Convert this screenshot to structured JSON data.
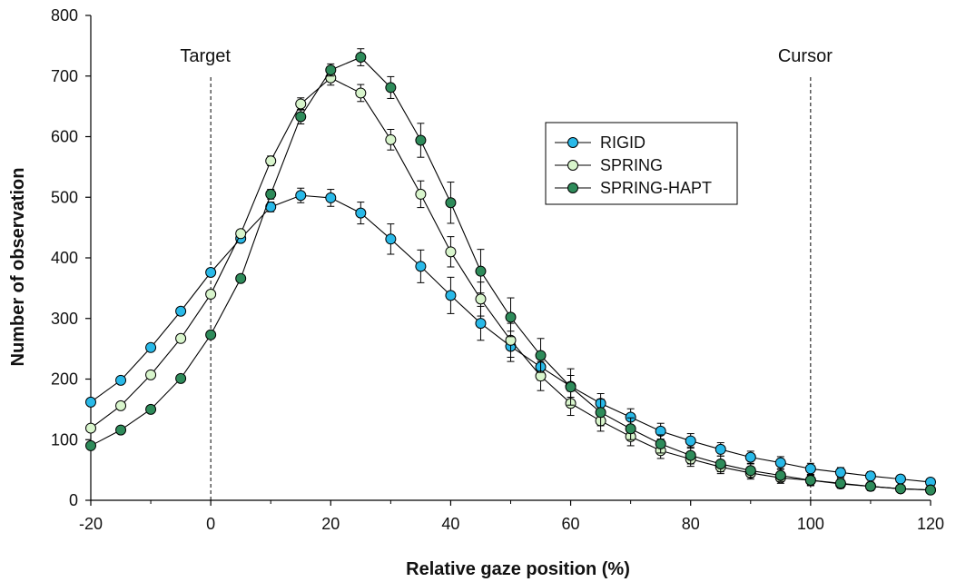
{
  "chart_data": {
    "type": "line",
    "title": "",
    "xlabel": "Relative gaze position (%)",
    "ylabel": "Number of observation",
    "xlim": [
      -20,
      120
    ],
    "ylim": [
      0,
      800
    ],
    "xticks": [
      -20,
      0,
      20,
      40,
      60,
      80,
      100,
      120
    ],
    "yticks": [
      0,
      100,
      200,
      300,
      400,
      500,
      600,
      700,
      800
    ],
    "grid": false,
    "legend_position": "top-right",
    "x": [
      -20,
      -15,
      -10,
      -5,
      0,
      5,
      10,
      15,
      20,
      25,
      30,
      35,
      40,
      45,
      50,
      55,
      60,
      65,
      70,
      75,
      80,
      85,
      90,
      95,
      100,
      105,
      110,
      115,
      120
    ],
    "annotations": [
      {
        "label": "Target",
        "x": 0,
        "style": "dashed"
      },
      {
        "label": "Cursor",
        "x": 100,
        "style": "dashed"
      }
    ],
    "series": [
      {
        "name": "RIGID",
        "color": "#29b9e8",
        "values": [
          162,
          198,
          252,
          312,
          376,
          432,
          484,
          503,
          499,
          474,
          431,
          386,
          338,
          292,
          254,
          220,
          188,
          160,
          137,
          114,
          98,
          84,
          71,
          62,
          52,
          46,
          40,
          35,
          30
        ],
        "errors": [
          0,
          0,
          0,
          0,
          0,
          5,
          8,
          12,
          14,
          18,
          25,
          27,
          30,
          28,
          25,
          22,
          18,
          16,
          14,
          13,
          12,
          11,
          10,
          10,
          9,
          8,
          7,
          6,
          5
        ]
      },
      {
        "name": "SPRING",
        "color": "#d8f5cc",
        "values": [
          119,
          156,
          207,
          267,
          340,
          440,
          560,
          654,
          697,
          672,
          595,
          505,
          410,
          332,
          264,
          205,
          160,
          131,
          105,
          82,
          68,
          55,
          45,
          37,
          33,
          27,
          23,
          19,
          17
        ],
        "errors": [
          0,
          0,
          0,
          0,
          0,
          5,
          8,
          10,
          12,
          14,
          17,
          22,
          25,
          28,
          28,
          24,
          20,
          17,
          15,
          13,
          12,
          11,
          10,
          9,
          8,
          7,
          6,
          5,
          4
        ]
      },
      {
        "name": "SPRING-HAPT",
        "color": "#2e8b5a",
        "values": [
          90,
          116,
          150,
          201,
          273,
          366,
          505,
          633,
          710,
          731,
          681,
          594,
          491,
          378,
          302,
          239,
          187,
          145,
          118,
          93,
          74,
          60,
          49,
          41,
          33,
          28,
          23,
          19,
          17
        ],
        "errors": [
          0,
          0,
          0,
          0,
          0,
          5,
          8,
          12,
          10,
          14,
          18,
          28,
          34,
          36,
          32,
          28,
          30,
          22,
          18,
          15,
          14,
          13,
          11,
          10,
          9,
          8,
          7,
          6,
          5
        ]
      }
    ]
  }
}
